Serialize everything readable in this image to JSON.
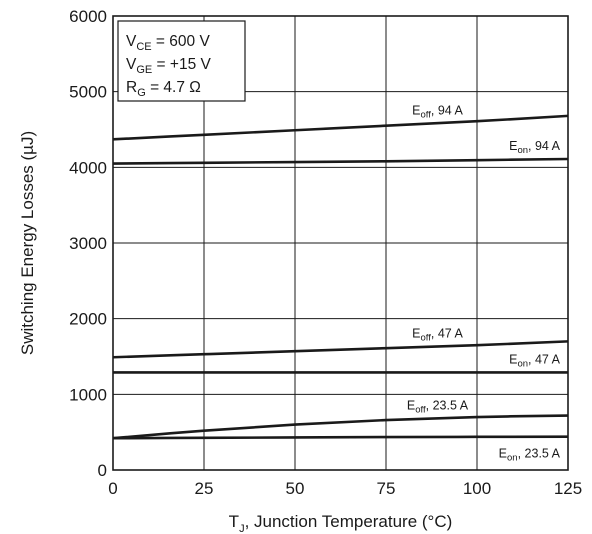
{
  "chart_data": {
    "type": "line",
    "xlabel": "T",
    "xlabel_sub": "J",
    "xlabel_rest": ", Junction Temperature (°C)",
    "ylabel": "Switching Energy Losses (µJ)",
    "xlim": [
      0,
      125
    ],
    "ylim": [
      0,
      6000
    ],
    "x_ticks": [
      "0",
      "25",
      "50",
      "75",
      "100",
      "125"
    ],
    "y_ticks": [
      "0",
      "1000",
      "2000",
      "3000",
      "4000",
      "5000",
      "6000"
    ],
    "grid": true,
    "conditions": [
      {
        "main": "V",
        "sub": "CE",
        "rest": " = 600 V"
      },
      {
        "main": "V",
        "sub": "GE",
        "rest": " = +15 V"
      },
      {
        "main": "R",
        "sub": "G",
        "rest": " = 4.7 Ω"
      }
    ],
    "series": [
      {
        "name": "Eoff, 94 A",
        "label_main": "E",
        "label_sub": "off",
        "label_rest": ", 94 A",
        "x": [
          0,
          25,
          50,
          75,
          100,
          125
        ],
        "y": [
          4370,
          4430,
          4490,
          4550,
          4610,
          4680
        ]
      },
      {
        "name": "Eon, 94 A",
        "label_main": "E",
        "label_sub": "on",
        "label_rest": ", 94 A",
        "x": [
          0,
          25,
          50,
          75,
          100,
          125
        ],
        "y": [
          4050,
          4060,
          4070,
          4080,
          4095,
          4110
        ]
      },
      {
        "name": "Eoff, 47 A",
        "label_main": "E",
        "label_sub": "off",
        "label_rest": ", 47 A",
        "x": [
          0,
          25,
          50,
          75,
          100,
          125
        ],
        "y": [
          1490,
          1530,
          1570,
          1610,
          1650,
          1700
        ]
      },
      {
        "name": "Eon, 47 A",
        "label_main": "E",
        "label_sub": "on",
        "label_rest": ", 47 A",
        "x": [
          0,
          25,
          50,
          75,
          100,
          125
        ],
        "y": [
          1290,
          1290,
          1290,
          1290,
          1290,
          1290
        ]
      },
      {
        "name": "Eoff, 23.5 A",
        "label_main": "E",
        "label_sub": "off",
        "label_rest": ", 23.5 A",
        "x": [
          0,
          25,
          50,
          75,
          100,
          125
        ],
        "y": [
          420,
          520,
          600,
          660,
          700,
          720
        ]
      },
      {
        "name": "Eon, 23.5 A",
        "label_main": "E",
        "label_sub": "on",
        "label_rest": ", 23.5 A",
        "x": [
          0,
          25,
          50,
          75,
          100,
          125
        ],
        "y": [
          420,
          425,
          430,
          435,
          438,
          440
        ]
      }
    ]
  }
}
